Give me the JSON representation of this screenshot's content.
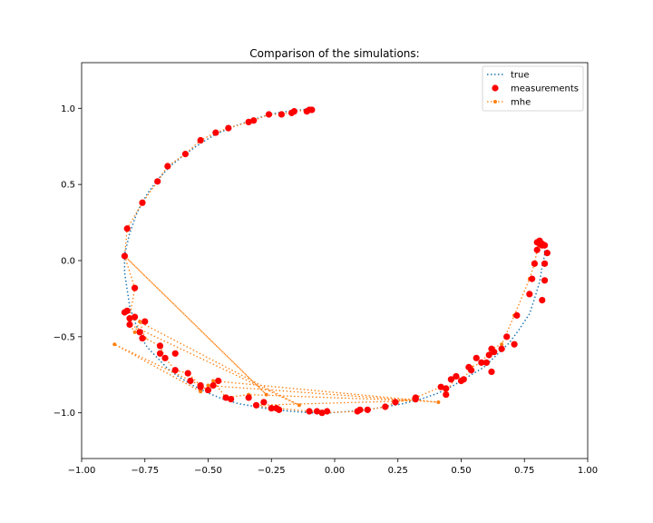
{
  "chart_data": {
    "type": "line",
    "title": "Comparison of the simulations:",
    "xlabel": "",
    "ylabel": "",
    "xlim": [
      -1.0,
      1.0
    ],
    "ylim": [
      -1.3,
      1.3
    ],
    "xticks": [
      -1.0,
      -0.75,
      -0.5,
      -0.25,
      0.0,
      0.25,
      0.5,
      0.75,
      1.0
    ],
    "xtick_labels": [
      "−1.00",
      "−0.75",
      "−0.50",
      "−0.25",
      "0.00",
      "0.25",
      "0.50",
      "0.75",
      "1.00"
    ],
    "yticks": [
      -1.0,
      -0.5,
      0.0,
      0.5,
      1.0
    ],
    "ytick_labels": [
      "−1.0",
      "−0.5",
      "0.0",
      "0.5",
      "1.0"
    ],
    "grid": false,
    "legend_position": "top-right",
    "series": [
      {
        "name": "true",
        "style": "dotted-line",
        "color": "#1f77b4",
        "x": [
          -0.09,
          -0.13,
          -0.19,
          -0.26,
          -0.33,
          -0.4,
          -0.47,
          -0.53,
          -0.59,
          -0.65,
          -0.7,
          -0.74,
          -0.78,
          -0.81,
          -0.83,
          -0.83,
          -0.82,
          -0.81,
          -0.79,
          -0.77,
          -0.74,
          -0.7,
          -0.66,
          -0.61,
          -0.56,
          -0.5,
          -0.44,
          -0.38,
          -0.31,
          -0.24,
          -0.17,
          -0.09,
          -0.02,
          0.06,
          0.13,
          0.2,
          0.27,
          0.34,
          0.41,
          0.47,
          0.53,
          0.59,
          0.64,
          0.69,
          0.73,
          0.77,
          0.79,
          0.81,
          0.82,
          0.83,
          0.83,
          0.82,
          0.81
        ],
        "y": [
          1.0,
          0.99,
          0.98,
          0.96,
          0.92,
          0.88,
          0.83,
          0.77,
          0.7,
          0.62,
          0.53,
          0.44,
          0.32,
          0.18,
          0.04,
          -0.08,
          -0.19,
          -0.3,
          -0.4,
          -0.49,
          -0.57,
          -0.64,
          -0.71,
          -0.77,
          -0.82,
          -0.87,
          -0.91,
          -0.94,
          -0.96,
          -0.98,
          -0.99,
          -1.0,
          -1.0,
          -0.99,
          -0.98,
          -0.96,
          -0.94,
          -0.91,
          -0.87,
          -0.82,
          -0.76,
          -0.7,
          -0.62,
          -0.54,
          -0.45,
          -0.35,
          -0.25,
          -0.14,
          -0.04,
          0.04,
          0.08,
          0.11,
          0.13
        ]
      },
      {
        "name": "measurements",
        "style": "markers",
        "color": "#ff0000",
        "x": [
          -0.09,
          -0.1,
          -0.11,
          -0.16,
          -0.17,
          -0.21,
          -0.26,
          -0.32,
          -0.34,
          -0.42,
          -0.47,
          -0.53,
          -0.59,
          -0.66,
          -0.7,
          -0.76,
          -0.82,
          -0.83,
          -0.79,
          -0.82,
          -0.83,
          -0.81,
          -0.81,
          -0.79,
          -0.77,
          -0.75,
          -0.76,
          -0.69,
          -0.69,
          -0.67,
          -0.63,
          -0.63,
          -0.58,
          -0.57,
          -0.53,
          -0.53,
          -0.5,
          -0.48,
          -0.46,
          -0.43,
          -0.41,
          -0.34,
          -0.31,
          -0.28,
          -0.25,
          -0.22,
          -0.23,
          -0.1,
          -0.07,
          -0.05,
          -0.03,
          0.09,
          0.1,
          0.13,
          0.2,
          0.24,
          0.32,
          0.32,
          0.42,
          0.44,
          0.44,
          0.46,
          0.48,
          0.51,
          0.5,
          0.53,
          0.54,
          0.56,
          0.58,
          0.6,
          0.61,
          0.62,
          0.62,
          0.63,
          0.66,
          0.68,
          0.71,
          0.72,
          0.77,
          0.78,
          0.79,
          0.8,
          0.82,
          0.83,
          0.83,
          0.82,
          0.81,
          0.8,
          0.81,
          0.82,
          0.83,
          0.84
        ],
        "y": [
          0.99,
          0.99,
          0.98,
          0.98,
          0.97,
          0.96,
          0.96,
          0.92,
          0.91,
          0.87,
          0.84,
          0.79,
          0.7,
          0.62,
          0.52,
          0.38,
          0.21,
          0.03,
          -0.18,
          -0.33,
          -0.34,
          -0.38,
          -0.42,
          -0.37,
          -0.47,
          -0.4,
          -0.51,
          -0.56,
          -0.61,
          -0.64,
          -0.61,
          -0.72,
          -0.74,
          -0.79,
          -0.82,
          -0.83,
          -0.85,
          -0.82,
          -0.79,
          -0.9,
          -0.91,
          -0.9,
          -0.95,
          -0.93,
          -0.97,
          -0.98,
          -0.97,
          -0.99,
          -0.99,
          -1.0,
          -0.99,
          -0.99,
          -0.98,
          -0.98,
          -0.96,
          -0.93,
          -0.9,
          -0.91,
          -0.83,
          -0.84,
          -0.88,
          -0.78,
          -0.76,
          -0.78,
          -0.79,
          -0.7,
          -0.72,
          -0.64,
          -0.67,
          -0.67,
          -0.62,
          -0.58,
          -0.73,
          -0.6,
          -0.58,
          -0.5,
          -0.55,
          -0.36,
          -0.22,
          -0.12,
          -0.02,
          0.07,
          -0.26,
          -0.13,
          -0.02,
          0.1,
          0.13,
          0.12,
          0.11,
          0.11,
          0.1,
          0.05
        ]
      },
      {
        "name": "mhe",
        "style": "dotted-line-markers",
        "color": "#ff7f0e",
        "x": [
          -0.09,
          -0.1,
          -0.16,
          -0.21,
          -0.26,
          -0.32,
          -0.42,
          -0.47,
          -0.53,
          -0.59,
          -0.66,
          -0.7,
          -0.76,
          -0.82,
          -0.83,
          -0.27,
          -0.83,
          -0.79,
          -0.81,
          -0.14,
          -0.81,
          -0.79,
          -0.77,
          -0.75,
          -0.69,
          -0.67,
          -0.63,
          -0.58,
          -0.53,
          -0.87,
          -0.53,
          -0.5,
          0.41,
          -0.48,
          -0.43,
          -0.34,
          0.32,
          -0.31,
          -0.25,
          -0.22,
          -0.1,
          -0.05,
          0.09,
          0.13,
          0.2,
          0.24,
          0.32,
          0.42,
          0.44,
          0.48,
          0.51,
          0.54,
          0.58,
          0.62,
          0.66,
          0.71,
          0.77,
          0.79,
          0.8,
          0.82,
          0.83,
          0.82,
          0.81
        ],
        "y": [
          0.99,
          0.99,
          0.98,
          0.96,
          0.96,
          0.92,
          0.87,
          0.84,
          0.79,
          0.7,
          0.62,
          0.52,
          0.38,
          0.21,
          0.03,
          -0.88,
          0.03,
          -0.18,
          -0.37,
          -0.95,
          -0.42,
          -0.47,
          -0.4,
          -0.51,
          -0.56,
          -0.64,
          -0.72,
          -0.74,
          -0.82,
          -0.55,
          -0.86,
          -0.82,
          -0.93,
          -0.79,
          -0.9,
          -0.88,
          -0.92,
          -0.95,
          -0.97,
          -0.97,
          -0.99,
          -1.0,
          -0.99,
          -0.98,
          -0.96,
          -0.93,
          -0.9,
          -0.83,
          -0.87,
          -0.76,
          -0.78,
          -0.7,
          -0.67,
          -0.58,
          -0.55,
          -0.36,
          -0.12,
          -0.02,
          0.07,
          0.1,
          0.11,
          0.12,
          0.13
        ]
      }
    ]
  }
}
